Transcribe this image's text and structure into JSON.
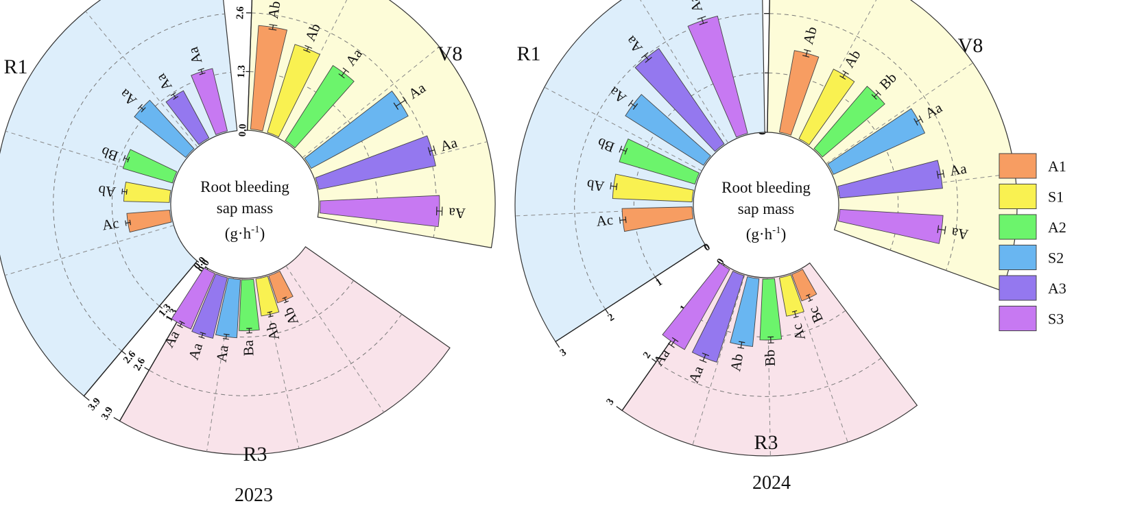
{
  "chart_data": [
    {
      "type": "bar",
      "subtype": "radial-grouped-bar",
      "year": "2023",
      "center_label": [
        "Root bleeding",
        "sap mass",
        "(g·h",
        "-1",
        ")"
      ],
      "axis_max": 3.9,
      "ticks": [
        "0.0",
        "1.3",
        "2.6",
        "3.9"
      ],
      "series": [
        "A1",
        "S1",
        "A2",
        "S2",
        "A3",
        "S3"
      ],
      "groups": [
        {
          "stage": "V8",
          "values": [
            2.33,
            2.07,
            2.0,
            2.47,
            2.67,
            2.67
          ],
          "errors": [
            0.05,
            0.05,
            0.08,
            0.12,
            0.06,
            0.06
          ],
          "labels": [
            "Ab",
            "Ab",
            "Aa",
            "Aa",
            "Aa",
            "Aa"
          ]
        },
        {
          "stage": "R1",
          "values": [
            0.98,
            1.04,
            1.17,
            1.48,
            1.22,
            1.45
          ],
          "errors": [
            0.05,
            0.05,
            0.05,
            0.05,
            0.05,
            0.05
          ],
          "labels": [
            "Ac",
            "Ab",
            "Bb",
            "Aa",
            "Aa",
            "Aa"
          ]
        },
        {
          "stage": "R3",
          "values": [
            0.66,
            0.86,
            1.16,
            1.32,
            1.41,
            1.37
          ],
          "errors": [
            0.05,
            0.05,
            0.05,
            0.05,
            0.05,
            0.05
          ],
          "labels": [
            "Ab",
            "Ab",
            "Ba",
            "Aa",
            "Aa",
            "Aa"
          ]
        }
      ]
    },
    {
      "type": "bar",
      "subtype": "radial-grouped-bar",
      "year": "2024",
      "center_label": [
        "Root bleeding",
        "sap mass",
        "(g·h",
        "-1",
        ")"
      ],
      "axis_max": 3,
      "ticks": [
        "0",
        "1",
        "2",
        "3"
      ],
      "series": [
        "A1",
        "S1",
        "A2",
        "S2",
        "A3",
        "S3"
      ],
      "groups": [
        {
          "stage": "V8",
          "values": [
            1.42,
            1.33,
            1.4,
            1.71,
            1.76,
            1.76
          ],
          "errors": [
            0.05,
            0.05,
            0.05,
            0.05,
            0.05,
            0.06
          ],
          "labels": [
            "Ab",
            "Ab",
            "Bb",
            "Aa",
            "Aa",
            "Aa"
          ]
        },
        {
          "stage": "R1",
          "values": [
            1.2,
            1.36,
            1.35,
            1.58,
            1.97,
            2.06
          ],
          "errors": [
            0.05,
            0.05,
            0.05,
            0.05,
            0.05,
            0.05
          ],
          "labels": [
            "Ac",
            "Ab",
            "Bb",
            "Aa",
            "Aa",
            "Aa"
          ]
        },
        {
          "stage": "R3",
          "values": [
            0.5,
            0.68,
            1.05,
            1.17,
            1.55,
            1.57
          ],
          "errors": [
            0.05,
            0.05,
            0.05,
            0.05,
            0.06,
            0.06
          ],
          "labels": [
            "Bc",
            "Ac",
            "Bb",
            "Ab",
            "Aa",
            "Aa"
          ]
        }
      ]
    }
  ],
  "legend": [
    {
      "label": "A1",
      "color": "#f79d62"
    },
    {
      "label": "S1",
      "color": "#f9f151"
    },
    {
      "label": "A2",
      "color": "#6cf46c"
    },
    {
      "label": "S2",
      "color": "#69b6f1"
    },
    {
      "label": "A3",
      "color": "#9478ef"
    },
    {
      "label": "S3",
      "color": "#c779f2"
    }
  ],
  "sector_colors": {
    "V8": "#fdfcd8",
    "R1": "#ddeefb",
    "R3": "#f9e3ea"
  }
}
